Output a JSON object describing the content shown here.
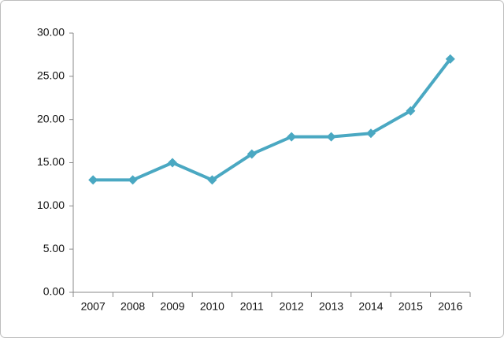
{
  "chart_data": {
    "type": "line",
    "categories": [
      "2007",
      "2008",
      "2009",
      "2010",
      "2011",
      "2012",
      "2013",
      "2014",
      "2015",
      "2016"
    ],
    "values": [
      13,
      13,
      15,
      13,
      16,
      18,
      18,
      18.4,
      21,
      27
    ],
    "color": "#4aa8c2",
    "ylim": [
      0,
      30
    ],
    "yticks": [
      {
        "value": 0,
        "label": "0.00"
      },
      {
        "value": 5,
        "label": "5.00"
      },
      {
        "value": 10,
        "label": "10.00"
      },
      {
        "value": 15,
        "label": "15.00"
      },
      {
        "value": 20,
        "label": "20.00"
      },
      {
        "value": 25,
        "label": "25.00"
      },
      {
        "value": 30,
        "label": "30.00"
      }
    ],
    "grid": false
  }
}
